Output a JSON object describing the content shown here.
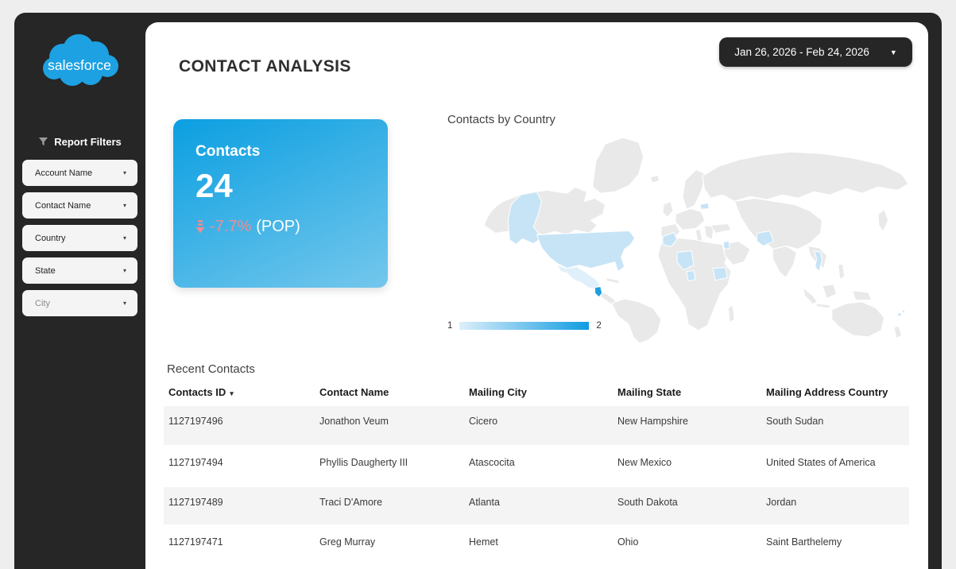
{
  "sidebar": {
    "logo_text": "salesforce",
    "filters_heading": "Report Filters",
    "filters": [
      {
        "label": "Account Name",
        "dim": false
      },
      {
        "label": "Contact Name",
        "dim": false
      },
      {
        "label": "Country",
        "dim": false
      },
      {
        "label": "State",
        "dim": false
      },
      {
        "label": "City",
        "dim": true
      }
    ]
  },
  "header": {
    "title": "CONTACT ANALYSIS",
    "date_range": "Jan 26, 2026 - Feb 24, 2026"
  },
  "kpi": {
    "label": "Contacts",
    "value": "24",
    "delta": "-7.7%",
    "delta_suffix": "(POP)",
    "delta_color": "#ee8d95",
    "gradient_start": "#0b9fe1",
    "gradient_end": "#74c7ec"
  },
  "map": {
    "title": "Contacts by Country",
    "legend_min": "1",
    "legend_max": "2",
    "colors": {
      "land": "#e9e9e9",
      "value1": "#c6e4f6",
      "value1_light": "#e0f0fa",
      "value2": "#1f9fe0",
      "legend_start": "#ddeffa",
      "legend_end": "#109ce2"
    },
    "highlighted_countries": [
      "United States of America",
      "Mexico",
      "Guatemala",
      "Morocco",
      "Mali",
      "Ghana",
      "South Sudan",
      "Jordan",
      "Latvia",
      "Afghanistan",
      "Thailand",
      "Fiji"
    ]
  },
  "table": {
    "title": "Recent Contacts",
    "columns": [
      "Contacts ID",
      "Contact Name",
      "Mailing City",
      "Mailing State",
      "Mailing Address Country"
    ],
    "rows": [
      [
        "1127197496",
        "Jonathon Veum",
        "Cicero",
        "New Hampshire",
        "South Sudan"
      ],
      [
        "1127197494",
        "Phyllis Daugherty III",
        "Atascocita",
        "New Mexico",
        "United States of America"
      ],
      [
        "1127197489",
        "Traci D'Amore",
        "Atlanta",
        "South Dakota",
        "Jordan"
      ],
      [
        "1127197471",
        "Greg Murray",
        "Hemet",
        "Ohio",
        "Saint Barthelemy"
      ]
    ]
  }
}
